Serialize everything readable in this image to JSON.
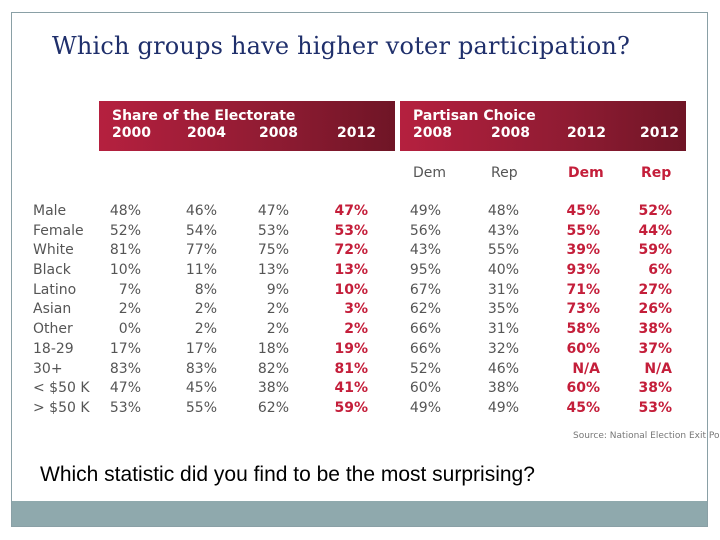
{
  "slide": {
    "title": "Which groups have higher voter participation?",
    "question": "Which statistic did you find to be the most surprising?"
  },
  "table": {
    "left_header": {
      "title": "Share of the Electorate",
      "years": [
        "2000",
        "2004",
        "2008",
        "2012"
      ]
    },
    "right_header": {
      "title": "Partisan Choice",
      "years": [
        "2008",
        "2008",
        "2012",
        "2012"
      ]
    },
    "parties": [
      "Dem",
      "Rep",
      "Dem",
      "Rep"
    ],
    "rows": [
      {
        "label": "Male",
        "values": [
          "48%",
          "46%",
          "47%",
          "47%",
          "49%",
          "48%",
          "45%",
          "52%"
        ]
      },
      {
        "label": "Female",
        "values": [
          "52%",
          "54%",
          "53%",
          "53%",
          "56%",
          "43%",
          "55%",
          "44%"
        ]
      },
      {
        "label": "White",
        "values": [
          "81%",
          "77%",
          "75%",
          "72%",
          "43%",
          "55%",
          "39%",
          "59%"
        ]
      },
      {
        "label": "Black",
        "values": [
          "10%",
          "11%",
          "13%",
          "13%",
          "95%",
          "40%",
          "93%",
          "6%"
        ]
      },
      {
        "label": "Latino",
        "values": [
          "7%",
          "8%",
          "9%",
          "10%",
          "67%",
          "31%",
          "71%",
          "27%"
        ]
      },
      {
        "label": "Asian",
        "values": [
          "2%",
          "2%",
          "2%",
          "3%",
          "62%",
          "35%",
          "73%",
          "26%"
        ]
      },
      {
        "label": "Other",
        "values": [
          "0%",
          "2%",
          "2%",
          "2%",
          "66%",
          "31%",
          "58%",
          "38%"
        ]
      },
      {
        "label": "18-29",
        "values": [
          "17%",
          "17%",
          "18%",
          "19%",
          "66%",
          "32%",
          "60%",
          "37%"
        ]
      },
      {
        "label": "30+",
        "values": [
          "83%",
          "83%",
          "82%",
          "81%",
          "52%",
          "46%",
          "N/A",
          "N/A"
        ]
      },
      {
        "label": "< $50 K",
        "values": [
          "47%",
          "45%",
          "38%",
          "41%",
          "60%",
          "38%",
          "60%",
          "38%"
        ]
      },
      {
        "label": "> $50 K",
        "values": [
          "53%",
          "55%",
          "62%",
          "59%",
          "49%",
          "49%",
          "45%",
          "53%"
        ]
      }
    ],
    "source": "Source: National Election Exit Poll"
  },
  "colors": {
    "title_text": "#1f2f6b",
    "header_red": "#b5203f",
    "highlight_red": "#c41e3a",
    "footer_bar": "#8fa9ad"
  }
}
